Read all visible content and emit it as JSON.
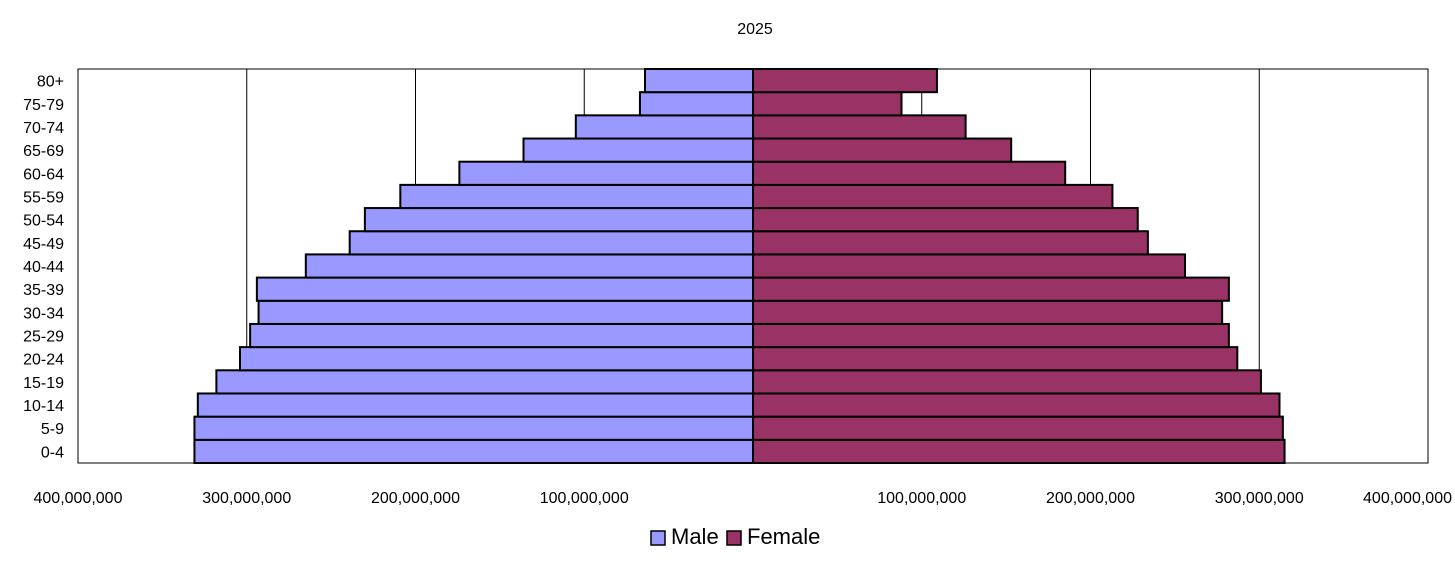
{
  "chart_data": {
    "type": "bar",
    "orientation": "horizontal",
    "layout": "population-pyramid",
    "title": "2025",
    "categories": [
      "0-4",
      "5-9",
      "10-14",
      "15-19",
      "20-24",
      "25-29",
      "30-34",
      "35-39",
      "40-44",
      "45-49",
      "50-54",
      "55-59",
      "60-64",
      "65-69",
      "70-74",
      "75-79",
      "80+"
    ],
    "series": [
      {
        "name": "Male",
        "color": "#9999ff",
        "side": "left",
        "values": [
          331000000,
          331000000,
          329000000,
          318000000,
          304000000,
          298000000,
          293000000,
          294000000,
          265000000,
          239000000,
          230000000,
          209000000,
          174000000,
          136000000,
          105000000,
          67000000,
          64000000
        ]
      },
      {
        "name": "Female",
        "color": "#993366",
        "side": "right",
        "values": [
          315000000,
          314000000,
          312000000,
          301000000,
          287000000,
          282000000,
          278000000,
          282000000,
          256000000,
          234000000,
          228000000,
          213000000,
          185000000,
          153000000,
          126000000,
          88000000,
          109000000
        ]
      }
    ],
    "xlim": [
      -400000000,
      400000000
    ],
    "xticks": [
      -400000000,
      -300000000,
      -200000000,
      -100000000,
      0,
      100000000,
      200000000,
      300000000,
      400000000
    ],
    "xtick_labels": [
      "400,000,000",
      "300,000,000",
      "200,000,000",
      "100,000,000",
      "",
      "100,000,000",
      "200,000,000",
      "300,000,000",
      "400,000,000"
    ],
    "grid": true,
    "legend": "bottom-center"
  }
}
